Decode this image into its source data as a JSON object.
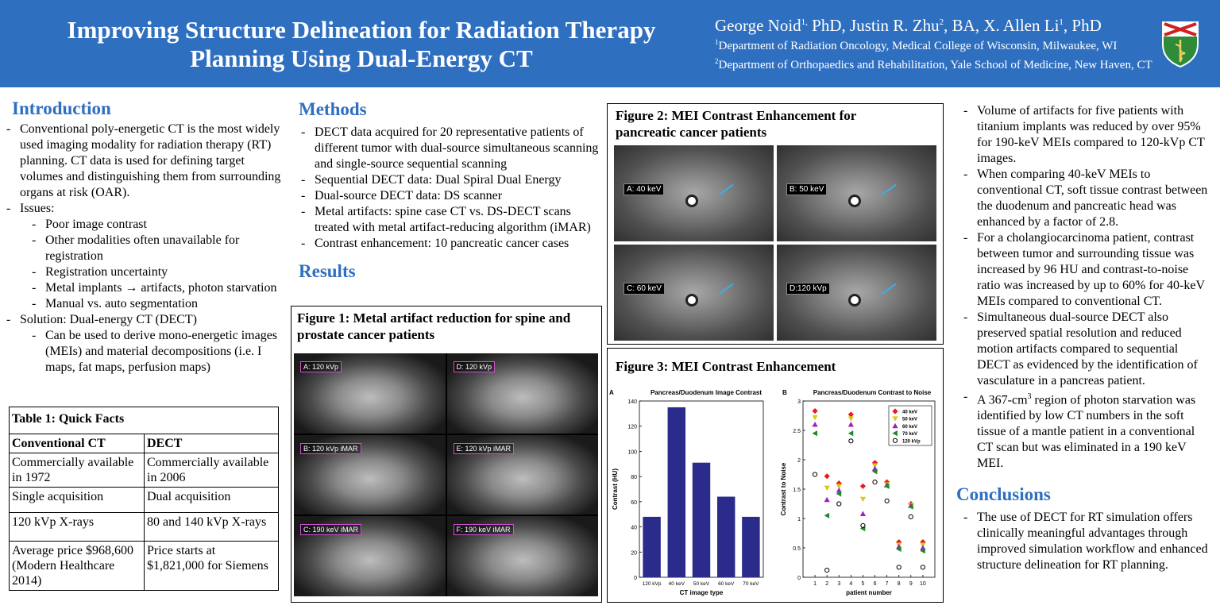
{
  "header": {
    "title_line1": "Improving Structure Delineation for Radiation Therapy",
    "title_line2": "Planning Using Dual-Energy CT",
    "authors": [
      {
        "name": "George Noid",
        "sup": "1,",
        "deg": " PhD, "
      },
      {
        "name": "Justin R. Zhu",
        "sup": "2",
        "deg": ", BA, "
      },
      {
        "name": "X. Allen Li",
        "sup": "1",
        "deg": ", PhD"
      }
    ],
    "affil1_sup": "1",
    "affil1": "Department of Radiation Oncology, Medical College of Wisconsin, Milwaukee, WI",
    "affil2_sup": "2",
    "affil2": "Department of Orthopaedics and Rehabilitation, Yale School of Medicine, New Haven, CT",
    "logo_icon": "university-shield-logo"
  },
  "introduction": {
    "heading": "Introduction",
    "p1": "Conventional poly-energetic CT is the most widely used imaging modality for radiation therapy (RT) planning. CT data is used for defining target volumes and distinguishing them from surrounding organs at risk (OAR).",
    "issues_label": "Issues:",
    "issues": [
      "Poor image contrast",
      "Other modalities often unavailable for registration",
      "Registration uncertainty",
      "Metal implants → artifacts, photon starvation",
      "Manual vs. auto segmentation"
    ],
    "solution_label": "Solution: Dual-energy CT (DECT)",
    "solution_items": [
      "Can be used to derive mono-energetic images (MEIs) and material decompositions (i.e. I maps, fat maps, perfusion maps)"
    ]
  },
  "table1": {
    "title": "Table 1: Quick Facts",
    "headers": [
      "Conventional CT",
      "DECT"
    ],
    "rows": [
      [
        "Commercially available in 1972",
        "Commercially available in 2006"
      ],
      [
        "Single acquisition",
        "Dual acquisition"
      ],
      [
        "120 kVp X-rays",
        "80 and 140 kVp X-rays"
      ],
      [
        "Average price $968,600 (Modern Healthcare 2014)",
        "Price starts at $1,821,000 for Siemens"
      ]
    ]
  },
  "methods": {
    "heading": "Methods",
    "items": [
      "DECT data acquired for 20 representative patients of different tumor with dual-source simultaneous scanning and single-source sequential scanning",
      "Sequential DECT data: Dual Spiral Dual Energy",
      "Dual-source DECT data: DS scanner",
      "Metal artifacts: spine case CT vs. DS-DECT scans treated with metal artifact-reducing algorithm (iMAR)",
      "Contrast enhancement: 10 pancreatic cancer cases"
    ]
  },
  "results": {
    "heading": "Results"
  },
  "figure1": {
    "title": "Figure 1: Metal artifact reduction for spine and prostate cancer patients",
    "panels": [
      "A: 120 kVp",
      "D: 120 kVp",
      "B: 120 kVp iMAR",
      "E: 120 kVp iMAR",
      "C: 190 keV iMAR",
      "F: 190 keV iMAR"
    ]
  },
  "figure2": {
    "title": "Figure 2: MEI Contrast Enhancement for pancreatic cancer patients",
    "panels": [
      "A: 40 keV",
      "B: 50 keV",
      "C: 60 keV",
      "D:120 kVp"
    ]
  },
  "figure3": {
    "title": "Figure 3: MEI Contrast Enhancement"
  },
  "chart_data": [
    {
      "type": "bar",
      "panel": "A",
      "title": "Pancreas/Duodenum Image Contrast",
      "xlabel": "CT image type",
      "ylabel": "Contrast (HU)",
      "categories": [
        "120 kVp",
        "40 keV",
        "50 keV",
        "60 keV",
        "70 keV"
      ],
      "values": [
        48,
        135,
        91,
        64,
        48
      ],
      "ylim": [
        0,
        140
      ],
      "yticks": [
        0,
        20,
        40,
        60,
        80,
        100,
        120,
        140
      ],
      "color": "#2b2b8c"
    },
    {
      "type": "scatter",
      "panel": "B",
      "title": "Pancreas/Duodenum Contrast to Noise",
      "xlabel": "patient number",
      "ylabel": "Contrast to Noise",
      "xlim": [
        0,
        11
      ],
      "ylim": [
        0,
        3
      ],
      "xticks": [
        1,
        2,
        3,
        4,
        5,
        6,
        7,
        8,
        9,
        10
      ],
      "yticks": [
        0,
        0.5,
        1,
        1.5,
        2,
        2.5,
        3
      ],
      "legend_position": "top-right",
      "x": [
        1,
        2,
        3,
        4,
        5,
        6,
        7,
        8,
        9,
        10
      ],
      "series": [
        {
          "name": "40 keV",
          "marker": "diamond",
          "color": "#e81c1c",
          "values": [
            2.83,
            1.72,
            1.6,
            2.77,
            1.55,
            1.95,
            1.62,
            0.6,
            1.25,
            0.6
          ]
        },
        {
          "name": "50 keV",
          "marker": "triangle-down",
          "color": "#d8c81c",
          "values": [
            2.72,
            1.52,
            1.55,
            2.7,
            1.33,
            1.9,
            1.58,
            0.55,
            1.23,
            0.55
          ]
        },
        {
          "name": "60 keV",
          "marker": "triangle-up",
          "color": "#a020c0",
          "values": [
            2.6,
            1.32,
            1.48,
            2.6,
            1.08,
            1.85,
            1.57,
            0.52,
            1.22,
            0.5
          ]
        },
        {
          "name": "70 keV",
          "marker": "triangle-left",
          "color": "#1a8a2a",
          "values": [
            2.45,
            1.05,
            1.42,
            2.45,
            0.83,
            1.8,
            1.55,
            0.48,
            1.2,
            0.45
          ]
        },
        {
          "name": "120 kVp",
          "marker": "circle",
          "color": "#000000",
          "values": [
            1.75,
            0.12,
            1.25,
            2.32,
            0.88,
            1.62,
            1.3,
            0.17,
            1.03,
            0.17
          ]
        }
      ]
    }
  ],
  "findings": {
    "items": [
      "Volume of artifacts for five patients with titanium implants was reduced by over 95% for 190-keV MEIs compared to 120-kVp CT images.",
      "When comparing 40-keV MEIs to conventional CT, soft tissue contrast between the duodenum and pancreatic head was enhanced by a factor of 2.8.",
      "For a cholangiocarcinoma patient, contrast between tumor and surrounding tissue was increased by 96 HU and contrast-to-noise ratio was increased by up to 60% for 40-keV MEIs compared to conventional CT.",
      "Simultaneous dual-source DECT also preserved spatial resolution and reduced motion artifacts compared to sequential DECT as evidenced by the identification of vasculature in a pancreas patient."
    ],
    "last_pre": "A 367-cm",
    "last_sup": "3",
    "last_post": " region of photon starvation was identified by low CT numbers in the soft tissue of a mantle patient in a conventional CT scan but was eliminated in a 190 keV MEI."
  },
  "conclusions": {
    "heading": "Conclusions",
    "items": [
      "The use of DECT for RT simulation offers clinically meaningful advantages through improved simulation workflow and enhanced structure delineation for RT planning."
    ]
  }
}
